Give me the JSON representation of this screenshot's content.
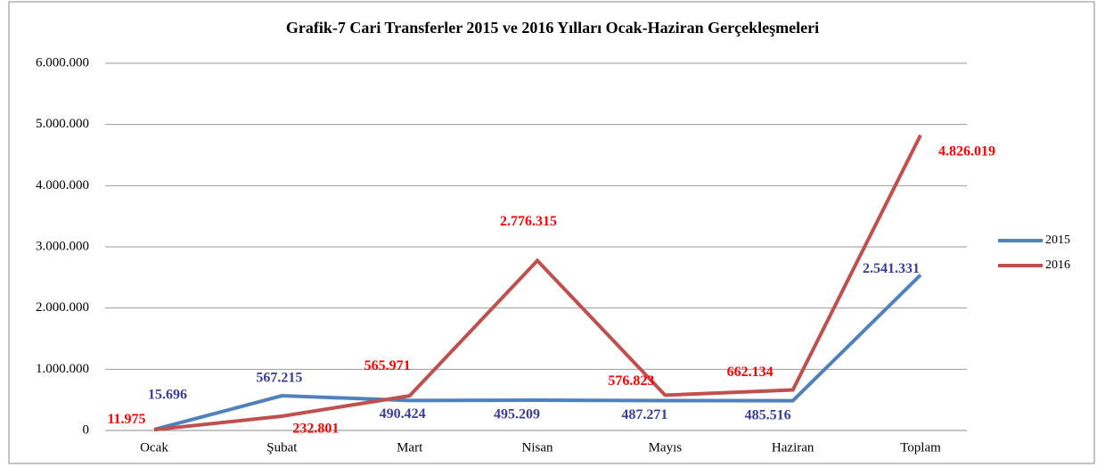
{
  "chart_data": {
    "type": "line",
    "title": "Grafik-7  Cari Transferler  2015 ve 2016 Yılları  Ocak-Haziran  Gerçekleşmeleri",
    "categories": [
      "Ocak",
      "Şubat",
      "Mart",
      "Nisan",
      "Mayıs",
      "Haziran",
      "Toplam"
    ],
    "series": [
      {
        "name": "2015",
        "color": "#4f81bd",
        "label_color": "#3c3c9b",
        "values": [
          15696,
          567215,
          490424,
          495209,
          487271,
          485516,
          2541331
        ],
        "value_labels": [
          "15.696",
          "567.215",
          "490.424",
          "495.209",
          "487.271",
          "485.516",
          "2.541.331"
        ]
      },
      {
        "name": "2016",
        "color": "#c0504d",
        "label_color": "#ff0000",
        "values": [
          11975,
          232801,
          565971,
          2776315,
          576823,
          662134,
          4826019
        ],
        "value_labels": [
          "11.975",
          "232.801",
          "565.971",
          "2.776.315",
          "576.823",
          "662.134",
          "4.826.019"
        ]
      }
    ],
    "ylim": [
      0,
      6000000
    ],
    "yticks": [
      0,
      {
        "value": 1000000,
        "label": "1.000.000"
      },
      {
        "value": 2000000,
        "label": "2.000.000"
      },
      {
        "value": 3000000,
        "label": "3.000.000"
      },
      {
        "value": 4000000,
        "label": "4.000.000"
      },
      {
        "value": 5000000,
        "label": "5.000.000"
      },
      {
        "value": 6000000,
        "label": "6.000.000"
      }
    ],
    "grid": true,
    "legend": "right"
  }
}
